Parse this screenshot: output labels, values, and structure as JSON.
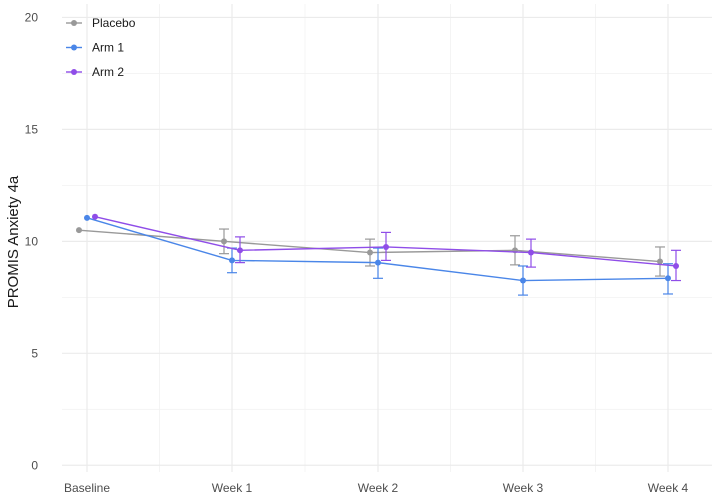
{
  "chart_data": {
    "type": "line",
    "title": "",
    "xlabel": "",
    "ylabel": "PROMIS Anxiety 4a",
    "categories": [
      "Baseline",
      "Week 1",
      "Week 2",
      "Week 3",
      "Week 4"
    ],
    "ylim": [
      -0.3,
      20.6
    ],
    "yticks": [
      0,
      5,
      10,
      15,
      20
    ],
    "grid": true,
    "legend_position": "top-left",
    "series": [
      {
        "name": "Placebo",
        "color": "#999999",
        "values": [
          10.5,
          10.0,
          9.5,
          9.6,
          9.1
        ],
        "error_low": [
          null,
          9.45,
          8.9,
          8.95,
          8.45
        ],
        "error_high": [
          null,
          10.55,
          10.1,
          10.25,
          9.75
        ]
      },
      {
        "name": "Arm 1",
        "color": "#4a86e8",
        "values": [
          11.05,
          9.15,
          9.05,
          8.25,
          8.35
        ],
        "error_low": [
          null,
          8.6,
          8.35,
          7.6,
          7.65
        ],
        "error_high": [
          null,
          9.7,
          9.7,
          8.9,
          9.0
        ]
      },
      {
        "name": "Arm 2",
        "color": "#8f4de8",
        "values": [
          11.1,
          9.6,
          9.75,
          9.5,
          8.9
        ],
        "error_low": [
          null,
          9.05,
          9.15,
          8.85,
          8.25
        ],
        "error_high": [
          null,
          10.2,
          10.4,
          10.1,
          9.6
        ]
      }
    ]
  }
}
